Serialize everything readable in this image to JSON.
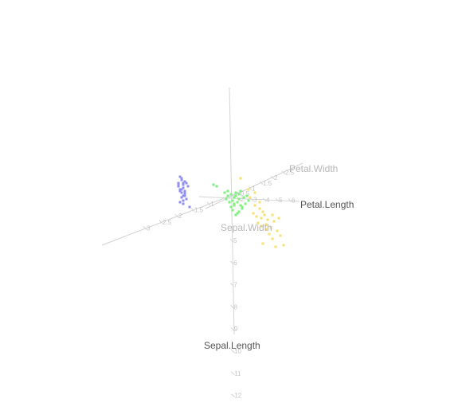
{
  "chart_data": {
    "type": "scatter",
    "projection": "3d",
    "axes": {
      "sepal_length": {
        "title": "Sepal.Length",
        "ticks": [
          "5",
          "6",
          "7",
          "8",
          "9",
          "10",
          "11",
          "12"
        ],
        "range": [
          4,
          12
        ]
      },
      "sepal_width": {
        "title": "Sepal.Width",
        "ticks": [
          "1",
          "1.5",
          "2",
          "2.5",
          "3"
        ],
        "range": [
          0,
          3
        ]
      },
      "petal_length": {
        "title": "Petal.Length",
        "ticks": [
          "2",
          "3",
          "4",
          "5",
          "6"
        ],
        "range": [
          0,
          7
        ]
      },
      "petal_width": {
        "title": "Petal.Width",
        "ticks": [
          "0.5",
          "1",
          "1.5",
          "2",
          "2.5"
        ],
        "range": [
          0,
          2.5
        ]
      }
    },
    "series": [
      {
        "color": "#8f8ff2",
        "x": [
          -3.2,
          -3.1,
          -3.0,
          -3.3,
          -2.9,
          -3.1,
          -3.0,
          -2.8,
          -3.2,
          -3.0,
          -2.9,
          -3.1,
          -3.3,
          -3.0,
          -2.7,
          -2.9,
          -3.0,
          -3.2,
          -3.1,
          -2.8,
          -3.0,
          -3.2,
          -2.9,
          -3.1,
          -3.3,
          -2.6,
          -2.9
        ],
        "y": [
          1.4,
          1.2,
          1.0,
          0.8,
          1.1,
          1.3,
          0.9,
          1.0,
          0.6,
          0.7,
          0.5,
          0.4,
          1.0,
          0.2,
          0.8,
          0.3,
          -0.1,
          0.5,
          0.1,
          0.0,
          -0.3,
          -0.2,
          0.2,
          0.6,
          0.9,
          -0.5,
          0.4
        ]
      },
      {
        "color": "#7ef07e",
        "x": [
          -1.1,
          -0.9,
          -0.4,
          -0.2,
          0.0,
          0.2,
          -0.3,
          0.1,
          0.3,
          0.5,
          0.2,
          0.4,
          0.6,
          0.0,
          -0.2,
          0.3,
          0.5,
          0.8,
          0.7,
          0.1,
          0.4,
          0.9,
          1.0,
          0.6,
          0.3,
          -0.1,
          0.2,
          0.5,
          0.7,
          1.1
        ],
        "y": [
          0.9,
          0.8,
          0.4,
          0.2,
          0.3,
          0.1,
          0.0,
          -0.1,
          0.2,
          0.0,
          -0.3,
          -0.2,
          -0.4,
          -0.5,
          0.5,
          0.4,
          0.3,
          0.1,
          -0.6,
          -0.7,
          -0.9,
          -0.3,
          0.2,
          0.5,
          -1.0,
          -0.2,
          -0.4,
          -0.8,
          -0.5,
          -0.1
        ]
      },
      {
        "color": "#f7e070",
        "x": [
          0.6,
          1.2,
          1.5,
          1.8,
          2.0,
          1.4,
          1.6,
          1.9,
          2.1,
          2.3,
          1.7,
          1.9,
          2.2,
          2.5,
          2.7,
          2.9,
          3.1,
          2.4,
          2.6,
          2.0,
          1.8,
          2.2,
          2.8,
          3.3,
          1.5,
          1.1,
          2.6,
          3.0
        ],
        "y": [
          1.3,
          0.1,
          -0.4,
          -0.6,
          -0.8,
          -0.9,
          -1.1,
          -1.2,
          -1.0,
          -1.3,
          -1.5,
          -1.7,
          -1.6,
          -1.8,
          -1.4,
          -2.0,
          -2.3,
          -2.2,
          -2.5,
          -2.8,
          -0.2,
          -1.9,
          -3.0,
          -2.9,
          0.4,
          0.6,
          -1.0,
          -1.2
        ]
      }
    ]
  }
}
